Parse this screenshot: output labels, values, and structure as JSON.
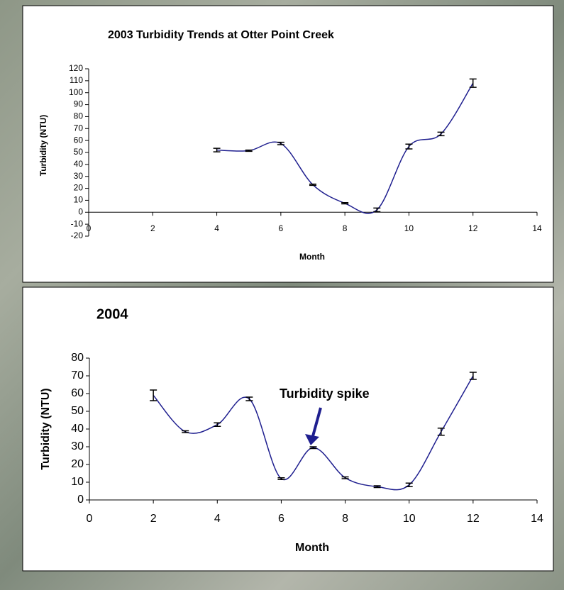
{
  "chart_data": [
    {
      "type": "line",
      "title": "2003 Turbidity Trends at Otter Point Creek",
      "xlabel": "Month",
      "ylabel": "Turbidity (NTU)",
      "xlim": [
        0,
        14
      ],
      "xticks": [
        0,
        2,
        4,
        6,
        8,
        10,
        12,
        14
      ],
      "ylim": [
        -20,
        120
      ],
      "yticks": [
        -20,
        -10,
        0,
        10,
        20,
        30,
        40,
        50,
        60,
        70,
        80,
        90,
        100,
        110,
        120
      ],
      "series": [
        {
          "color": "#1f1f8f",
          "x": [
            4,
            5,
            6,
            7,
            8,
            9,
            10,
            11,
            12
          ],
          "values": [
            52,
            51.5,
            57.5,
            23,
            7.5,
            2,
            55,
            65.5,
            108
          ],
          "errors": [
            1.5,
            0.5,
            1,
            0.5,
            0.5,
            1.5,
            2,
            1.5,
            3.5
          ]
        }
      ]
    },
    {
      "type": "line",
      "title": "2004",
      "xlabel": "Month",
      "ylabel": "Turbidity (NTU)",
      "annotation": "Turbidity spike",
      "xlim": [
        0,
        14
      ],
      "xticks": [
        0,
        2,
        4,
        6,
        8,
        10,
        12,
        14
      ],
      "ylim": [
        0,
        80
      ],
      "yticks": [
        0,
        10,
        20,
        30,
        40,
        50,
        60,
        70,
        80
      ],
      "series": [
        {
          "color": "#1f1f8f",
          "x": [
            2,
            3,
            4,
            5,
            6,
            7,
            8,
            9,
            10,
            11,
            12
          ],
          "values": [
            59,
            38.5,
            42.5,
            57,
            12,
            29.5,
            12.5,
            7.5,
            8.5,
            38.5,
            70
          ],
          "errors": [
            3,
            0.5,
            1,
            1,
            0.5,
            0.5,
            0.5,
            0.5,
            1,
            2,
            2
          ]
        }
      ]
    }
  ]
}
